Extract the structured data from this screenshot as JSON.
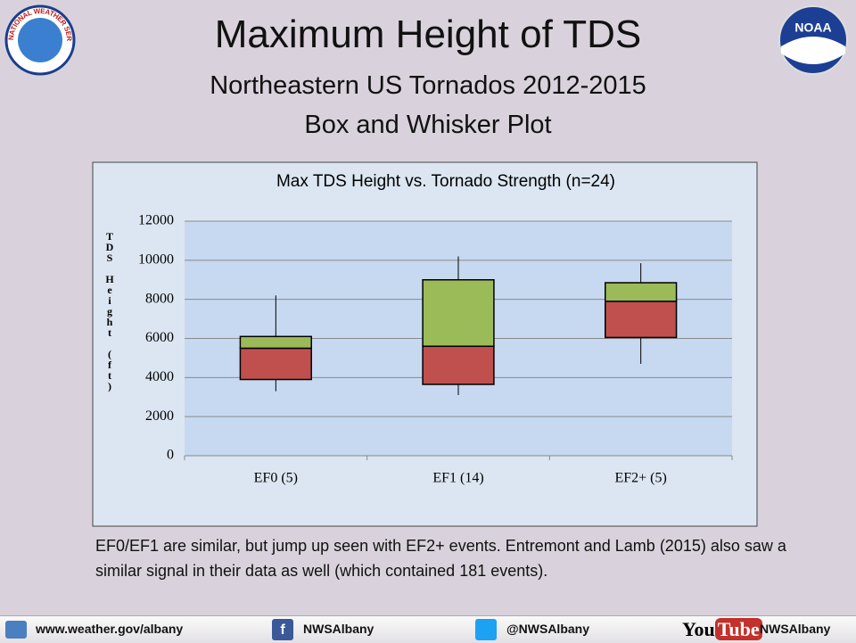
{
  "slide": {
    "title": "Maximum Height of TDS",
    "subtitle": "Northeastern US Tornados 2012-2015",
    "subtitle2": "Box and Whisker Plot",
    "nws_logo": "NATIONAL WEATHER SERVICE",
    "noaa_logo": "NOAA",
    "body": "EF0/EF1 are similar, but jump up seen with EF2+ events.  Entremont and Lamb (2015) also saw a similar signal in their data as well (which contained 181 events)."
  },
  "chart_data": {
    "type": "box",
    "title": "Max TDS Height vs. Tornado Strength (n=24)",
    "y_label": "TDS Height (ft)",
    "categories": [
      "EF0 (5)",
      "EF1 (14)",
      "EF2+ (5)"
    ],
    "min": [
      3300,
      3100,
      4700
    ],
    "q1": [
      3900,
      3650,
      6050
    ],
    "median": [
      5500,
      5600,
      7900
    ],
    "q3": [
      6100,
      9000,
      8850
    ],
    "max": [
      8200,
      10200,
      9850
    ],
    "colors": {
      "lower": "#c0504d",
      "upper": "#9bbb59",
      "whisker": "#000000"
    },
    "ylim": [
      0,
      12000
    ],
    "yticks": [
      0,
      2000,
      4000,
      6000,
      8000,
      10000,
      12000
    ],
    "grid": true
  },
  "footer": {
    "website": "www.weather.gov/albany",
    "facebook": "NWSAlbany",
    "twitter": "@NWSAlbany",
    "youtube_logo": [
      "You",
      "Tube"
    ],
    "youtube": "NWSAlbany"
  }
}
